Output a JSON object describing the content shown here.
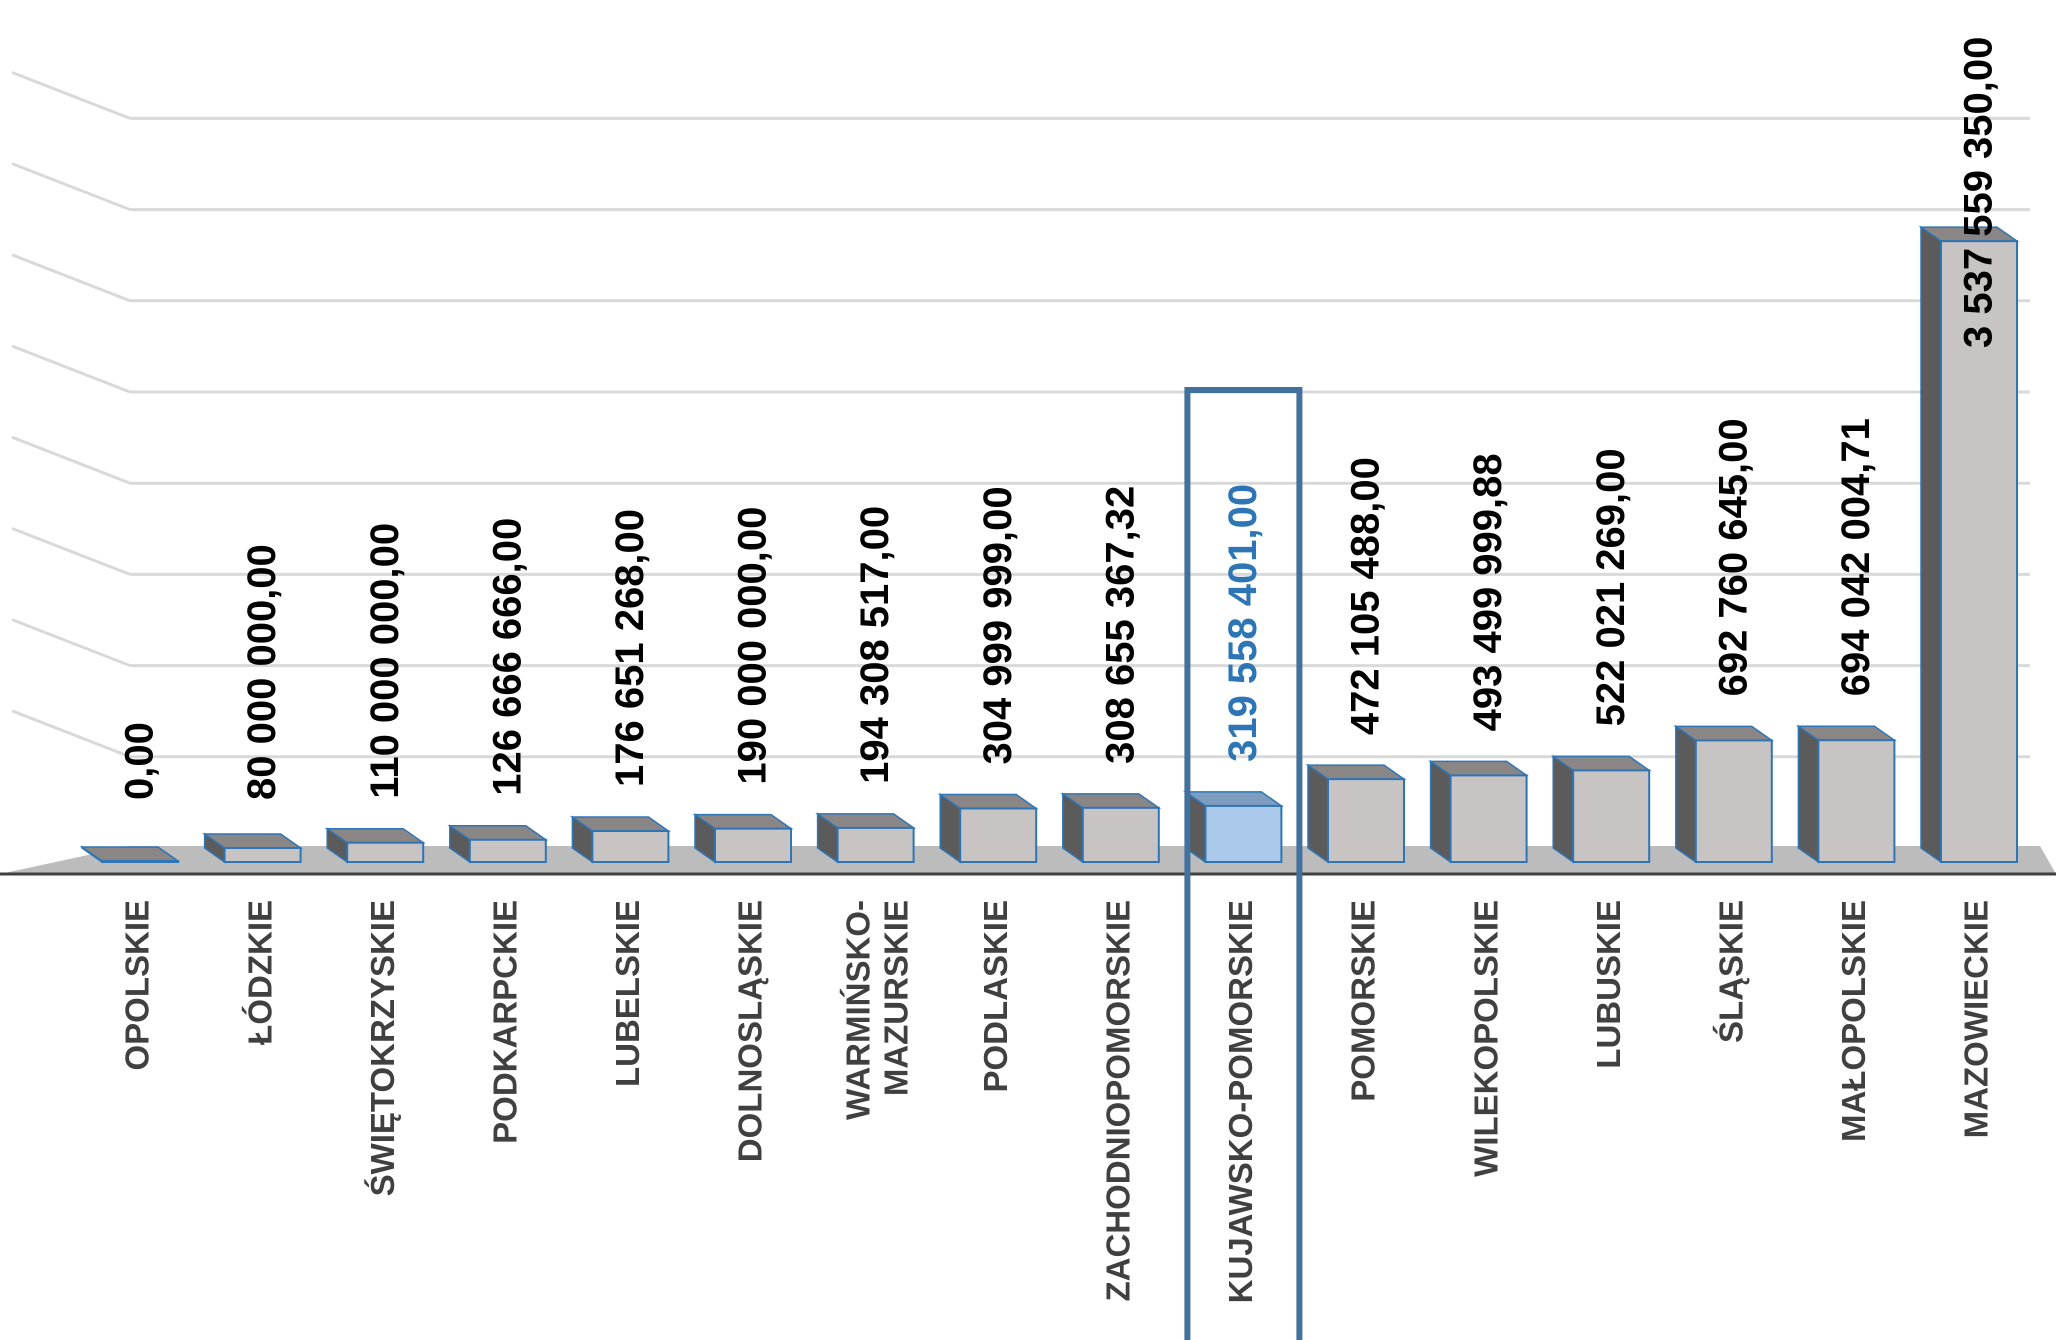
{
  "chart_data": {
    "type": "bar",
    "style": "3d-column",
    "categories": [
      "OPOLSKIE",
      "ŁÓDZKIE",
      "ŚWIĘTOKRZYSKIE",
      "PODKARPCKIE",
      "LUBELSKIE",
      "DOLNOSLĄSKIE",
      "WARMIŃSKO-\nMAZURSKIE",
      "PODLASKIE",
      "ZACHODNIOPOMORSKIE",
      "KUJAWSKO-POMORSKIE",
      "POMORSKIE",
      "WILEKOPOLSKIE",
      "LUBUSKIE",
      "ŚLĄSKIE",
      "MAŁOPOLSKIE",
      "MAZOWIECKIE"
    ],
    "values": [
      0,
      80000000,
      110000000,
      126666666,
      176651268,
      190000000,
      194308517,
      304999999,
      308655367.32,
      319558401,
      472105488,
      493499999.88,
      522021269,
      692760645,
      694042004.71,
      3537559350
    ],
    "value_labels": [
      "0,00",
      "80 000 000,00",
      "110 000 000,00",
      "126 666 666,00",
      "176 651 268,00",
      "190 000 000,00",
      "194 308 517,00",
      "304 999 999,00",
      "308 655 367,32",
      "319 558 401,00",
      "472 105 488,00",
      "493 499 999,88",
      "522 021 269,00",
      "692 760 645,00",
      "694 042 004,71",
      "3 537 559 350,00"
    ],
    "highlight_index": 9,
    "ylim": [
      0,
      4000000000
    ],
    "grid": true,
    "legend": "none",
    "title": "",
    "xlabel": "",
    "ylabel": "",
    "colors": {
      "bar_front": "#c9c4c4",
      "bar_top": "#8a8686",
      "bar_side": "#5b5b5b",
      "bar_edge": "#2e75b6",
      "highlight_front": "#a9c8ea",
      "highlight_top": "#7d9cbf",
      "highlight_box": "#41719c",
      "highlight_text": "#2e75b6",
      "floor": "#bcbcbc",
      "gridline": "#d9d9d9",
      "axis": "#404040"
    }
  }
}
